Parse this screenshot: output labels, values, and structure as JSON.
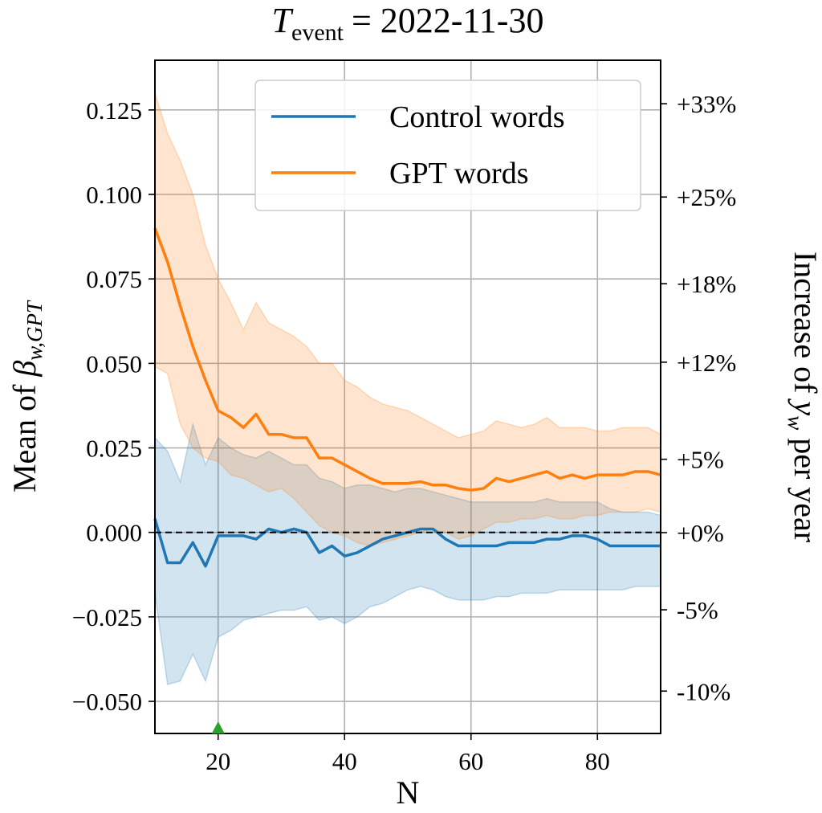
{
  "chart_data": {
    "type": "line",
    "title": {
      "symbol": "T",
      "subscript": "event",
      "text": "= 2022-11-30"
    },
    "xlabel": "N",
    "ylabel": {
      "text": "Mean of",
      "symbol": "β",
      "subscript": "w,GPT"
    },
    "y2label": {
      "text_before": "Increase of",
      "symbol": "y",
      "subscript": "w",
      "text_after": "per year"
    },
    "x": [
      10,
      12,
      14,
      16,
      18,
      20,
      22,
      24,
      26,
      28,
      30,
      32,
      34,
      36,
      38,
      40,
      42,
      44,
      46,
      48,
      50,
      52,
      54,
      56,
      58,
      60,
      62,
      64,
      66,
      68,
      70,
      72,
      74,
      76,
      78,
      80,
      82,
      84,
      86,
      88,
      90
    ],
    "series": [
      {
        "name": "Control words",
        "color": "#1f77b4",
        "values": [
          0.004,
          -0.009,
          -0.009,
          -0.003,
          -0.01,
          -0.001,
          -0.001,
          -0.001,
          -0.002,
          0.001,
          0.0,
          0.001,
          0.0,
          -0.006,
          -0.004,
          -0.007,
          -0.006,
          -0.004,
          -0.002,
          -0.001,
          0.0,
          0.001,
          0.001,
          -0.002,
          -0.004,
          -0.004,
          -0.004,
          -0.004,
          -0.003,
          -0.003,
          -0.003,
          -0.002,
          -0.002,
          -0.001,
          -0.001,
          -0.002,
          -0.004,
          -0.004,
          -0.004,
          -0.004,
          -0.004
        ],
        "upper": [
          0.028,
          0.024,
          0.015,
          0.032,
          0.02,
          0.028,
          0.025,
          0.023,
          0.022,
          0.024,
          0.022,
          0.02,
          0.02,
          0.016,
          0.015,
          0.013,
          0.014,
          0.014,
          0.013,
          0.012,
          0.013,
          0.013,
          0.012,
          0.011,
          0.01,
          0.009,
          0.009,
          0.009,
          0.009,
          0.009,
          0.009,
          0.01,
          0.009,
          0.009,
          0.009,
          0.009,
          0.007,
          0.006,
          0.006,
          0.006,
          0.005
        ],
        "lower": [
          -0.018,
          -0.045,
          -0.044,
          -0.036,
          -0.044,
          -0.031,
          -0.029,
          -0.026,
          -0.025,
          -0.024,
          -0.023,
          -0.023,
          -0.022,
          -0.026,
          -0.025,
          -0.027,
          -0.025,
          -0.022,
          -0.021,
          -0.019,
          -0.017,
          -0.016,
          -0.017,
          -0.019,
          -0.02,
          -0.02,
          -0.02,
          -0.019,
          -0.019,
          -0.018,
          -0.018,
          -0.018,
          -0.017,
          -0.017,
          -0.017,
          -0.017,
          -0.017,
          -0.017,
          -0.016,
          -0.016,
          -0.016
        ]
      },
      {
        "name": "GPT words",
        "color": "#ff7f0e",
        "values": [
          0.09,
          0.08,
          0.067,
          0.055,
          0.045,
          0.036,
          0.034,
          0.031,
          0.035,
          0.029,
          0.029,
          0.028,
          0.028,
          0.022,
          0.022,
          0.02,
          0.018,
          0.016,
          0.0145,
          0.0145,
          0.0145,
          0.015,
          0.014,
          0.014,
          0.013,
          0.0125,
          0.013,
          0.016,
          0.015,
          0.016,
          0.017,
          0.018,
          0.016,
          0.017,
          0.016,
          0.017,
          0.017,
          0.017,
          0.018,
          0.018,
          0.017
        ],
        "upper": [
          0.13,
          0.118,
          0.11,
          0.1,
          0.085,
          0.075,
          0.068,
          0.06,
          0.068,
          0.062,
          0.06,
          0.058,
          0.055,
          0.05,
          0.05,
          0.045,
          0.043,
          0.04,
          0.038,
          0.037,
          0.036,
          0.034,
          0.032,
          0.03,
          0.028,
          0.029,
          0.03,
          0.033,
          0.032,
          0.031,
          0.032,
          0.034,
          0.031,
          0.031,
          0.031,
          0.03,
          0.03,
          0.031,
          0.031,
          0.031,
          0.029
        ],
        "lower": [
          0.049,
          0.047,
          0.032,
          0.025,
          0.022,
          0.021,
          0.017,
          0.016,
          0.014,
          0.012,
          0.013,
          0.01,
          0.006,
          0.002,
          0.0,
          -0.001,
          -0.003,
          -0.004,
          -0.003,
          -0.002,
          -0.001,
          0.0,
          0.001,
          0.0,
          -0.002,
          -0.001,
          0.001,
          0.003,
          0.003,
          0.004,
          0.004,
          0.005,
          0.004,
          0.004,
          0.005,
          0.005,
          0.006,
          0.006,
          0.006,
          0.007,
          0.006
        ]
      }
    ],
    "xlim": [
      10,
      90
    ],
    "xticks": [
      20,
      40,
      60,
      80
    ],
    "ylim": [
      -0.0595,
      0.1397
    ],
    "yticks": [
      0.125,
      {
        "value": 0.1,
        "label": "0.100"
      },
      0.075,
      {
        "value": 0.05,
        "label": "0.050"
      },
      0.025,
      {
        "value": 0,
        "label": "0.000"
      },
      {
        "value": -0.025,
        "label": "−0.025"
      },
      {
        "value": -0.05,
        "label": "−0.050"
      }
    ],
    "y2scale": "log",
    "y2lim": [
      -12.5,
      36.9
    ],
    "y2ticks": [
      {
        "value": 33,
        "label": "+33%"
      },
      {
        "value": 25,
        "label": "+25%"
      },
      {
        "value": 18,
        "label": "+18%"
      },
      {
        "value": 12,
        "label": "+12%"
      },
      {
        "value": 5,
        "label": "+5%"
      },
      {
        "value": 0,
        "label": "+0%"
      },
      {
        "value": -5,
        "label": "-5%"
      },
      {
        "value": -10,
        "label": "-10%"
      }
    ],
    "grid": true,
    "hline": 0,
    "marker_x": 20,
    "marker_color": "#2ca02c",
    "legend": "upper right"
  }
}
